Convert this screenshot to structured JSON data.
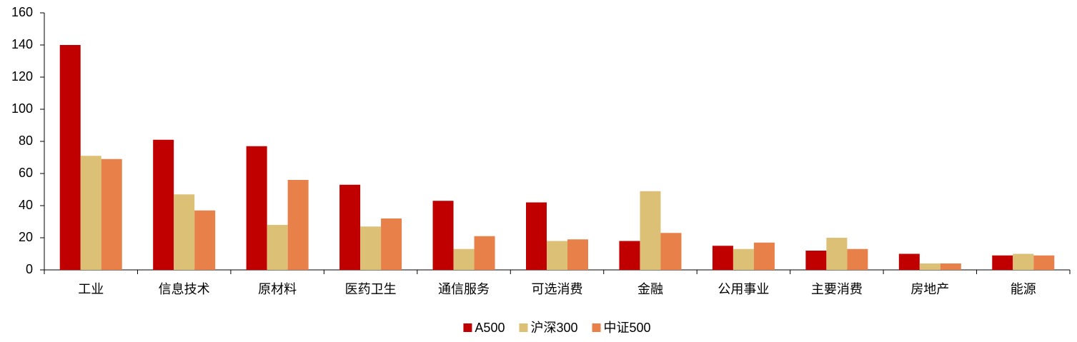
{
  "chart_data": {
    "type": "bar",
    "categories": [
      "工业",
      "信息技术",
      "原材料",
      "医药卫生",
      "通信服务",
      "可选消费",
      "金融",
      "公用事业",
      "主要消费",
      "房地产",
      "能源"
    ],
    "series": [
      {
        "name": "A500",
        "color": "#c00000",
        "values": [
          140,
          81,
          77,
          53,
          43,
          42,
          18,
          15,
          12,
          10,
          9
        ]
      },
      {
        "name": "沪深300",
        "color": "#dbc076",
        "values": [
          71,
          47,
          28,
          27,
          13,
          18,
          49,
          13,
          20,
          4,
          10
        ]
      },
      {
        "name": "中证500",
        "color": "#e8804a",
        "values": [
          69,
          37,
          56,
          32,
          21,
          19,
          23,
          17,
          13,
          4,
          9
        ]
      }
    ],
    "ylim": [
      0,
      160
    ],
    "yticks": [
      0,
      20,
      40,
      60,
      80,
      100,
      120,
      140,
      160
    ],
    "grid": false,
    "legend": "bottom"
  }
}
